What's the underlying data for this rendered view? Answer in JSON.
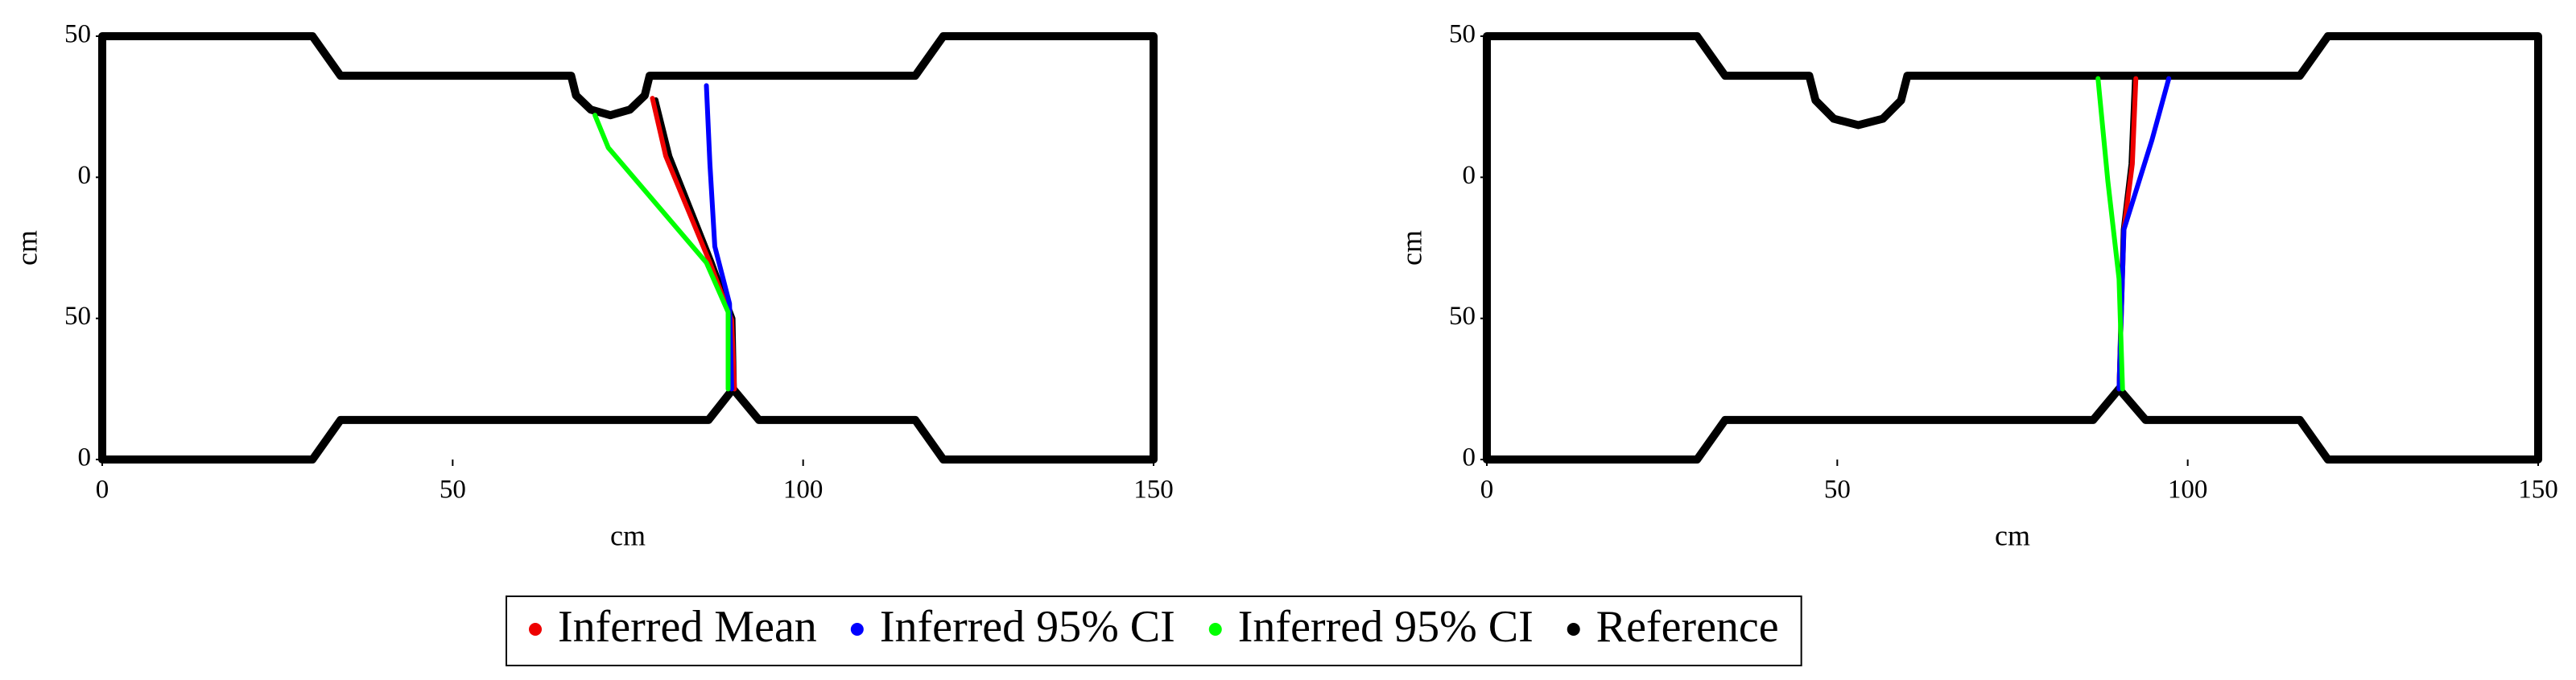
{
  "chart_data": [
    {
      "type": "line",
      "xlabel": "cm",
      "ylabel": "cm",
      "xlim": [
        0,
        150
      ],
      "ylim": [
        0,
        60
      ],
      "xticks": [
        0,
        50,
        100,
        150
      ],
      "yticks": [
        0,
        {
          "value": 20,
          "label": "50"
        },
        {
          "value": 40,
          "label": "0"
        },
        {
          "value": 60,
          "label": "50"
        }
      ],
      "outline": {
        "color": "#000000",
        "x": [
          0,
          30,
          34,
          66.9,
          67.6,
          69.7,
          72.5,
          75.3,
          77.4,
          78.1,
          116,
          120,
          150,
          150,
          120,
          116,
          93.7,
          90,
          86.5,
          34,
          30,
          0,
          0
        ],
        "y": [
          60,
          60,
          54.4,
          54.4,
          51.6,
          49.6,
          48.8,
          49.6,
          51.6,
          54.4,
          54.4,
          60,
          60,
          0,
          0,
          5.6,
          5.6,
          10,
          5.6,
          5.6,
          0,
          0,
          60
        ]
      },
      "series": [
        {
          "name": "Reference",
          "color": "#000000",
          "x": [
            79,
            81,
            87,
            90,
            90.2
          ],
          "values": [
            51,
            43,
            28,
            20,
            10
          ]
        },
        {
          "name": "Inferred Mean",
          "color": "#ee0000",
          "x": [
            78.5,
            80.4,
            86.7,
            89.8,
            90.2
          ],
          "values": [
            51.2,
            43,
            27.9,
            19.8,
            10
          ]
        },
        {
          "name": "Inferred 95% CI",
          "color": "#0000ff",
          "x": [
            86.2,
            86.7,
            87.4,
            89.5,
            89.8
          ],
          "values": [
            53,
            41.9,
            30.2,
            22.1,
            10
          ]
        },
        {
          "name": "Inferred 95% CI",
          "color": "#00ff00",
          "x": [
            70.3,
            72.2,
            86.2,
            89.3,
            89.3
          ],
          "values": [
            48.8,
            44.2,
            27.9,
            20.9,
            10
          ]
        }
      ]
    },
    {
      "type": "line",
      "xlabel": "cm",
      "ylabel": "cm",
      "xlim": [
        0,
        150
      ],
      "ylim": [
        0,
        60
      ],
      "xticks": [
        0,
        50,
        100,
        150
      ],
      "yticks": [
        0,
        {
          "value": 20,
          "label": "50"
        },
        {
          "value": 40,
          "label": "0"
        },
        {
          "value": 60,
          "label": "50"
        }
      ],
      "outline": {
        "color": "#000000",
        "x": [
          0,
          30,
          34,
          46,
          46.9,
          49.5,
          53,
          56.5,
          59.1,
          60,
          116,
          120,
          150,
          150,
          120,
          116,
          94,
          90.2,
          86.5,
          34,
          30,
          0,
          0
        ],
        "y": [
          60,
          60,
          54.4,
          54.4,
          50.9,
          48.3,
          47.4,
          48.3,
          50.9,
          54.4,
          54.4,
          60,
          60,
          0,
          0,
          5.6,
          5.6,
          10,
          5.6,
          5.6,
          0,
          0,
          60
        ]
      },
      "series": [
        {
          "color": "#000000",
          "x": [
            92.4,
            91.9,
            90.8,
            90.2
          ],
          "values": [
            54,
            41.9,
            32.6,
            10
          ]
        },
        {
          "color": "#ee0000",
          "x": [
            92.6,
            92.1,
            90.9,
            90.2
          ],
          "values": [
            54,
            41.9,
            32.6,
            10
          ]
        },
        {
          "color": "#0000ff",
          "x": [
            97.3,
            94.9,
            90.9,
            90.2
          ],
          "values": [
            54,
            45.3,
            32.6,
            10
          ]
        },
        {
          "color": "#00ff00",
          "x": [
            87.2,
            88.6,
            90.2,
            90.7
          ],
          "values": [
            54,
            39.5,
            25.6,
            10
          ]
        }
      ]
    }
  ]
}
